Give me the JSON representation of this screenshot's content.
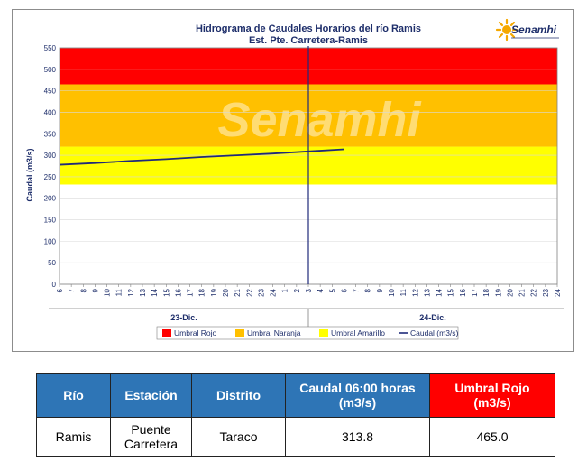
{
  "chart_data": {
    "type": "line",
    "title": "Hidrograma de Caudales Horarios del río Ramis",
    "subtitle": "Est. Pte. Carretera-Ramis",
    "ylabel": "Caudal  (m3/s)",
    "ylim": [
      0,
      550
    ],
    "yticks": [
      0,
      50,
      100,
      150,
      200,
      250,
      300,
      350,
      400,
      450,
      500,
      550
    ],
    "x_hour_ticks": [
      "6",
      "7",
      "8",
      "9",
      "10",
      "11",
      "12",
      "13",
      "14",
      "15",
      "16",
      "17",
      "18",
      "19",
      "20",
      "21",
      "22",
      "23",
      "24",
      "1",
      "2",
      "3",
      "4",
      "5",
      "6",
      "7",
      "8",
      "9",
      "10",
      "11",
      "12",
      "13",
      "14",
      "15",
      "16",
      "17",
      "18",
      "19",
      "20",
      "21",
      "22",
      "23",
      "24"
    ],
    "days": [
      {
        "label": "23-Dic.",
        "start_index": 0,
        "end_index": 21
      },
      {
        "label": "24-Dic.",
        "start_index": 21,
        "end_index": 42
      }
    ],
    "current_time_index": 21,
    "thresholds": [
      {
        "name": "Umbral Amarillo",
        "from": 232,
        "to": 320,
        "color": "#ffff00"
      },
      {
        "name": "Umbral Naranja",
        "from": 320,
        "to": 465,
        "color": "#ffc000"
      },
      {
        "name": "Umbral Rojo",
        "from": 465,
        "to": 550,
        "color": "#ff0000"
      }
    ],
    "series": [
      {
        "name": "Caudal (m3/s)",
        "color": "#1f2a7a",
        "x_index": [
          0,
          3,
          6,
          9,
          12,
          15,
          18,
          21,
          24
        ],
        "values": [
          278,
          282,
          287,
          291,
          296,
          300,
          304,
          309,
          313.8
        ]
      }
    ],
    "legend": {
      "position": "bottom",
      "items": [
        {
          "label": "Umbral Rojo",
          "color": "#ff0000",
          "kind": "box"
        },
        {
          "label": "Umbral Naranja",
          "color": "#ffc000",
          "kind": "box"
        },
        {
          "label": "Umbral Amarillo",
          "color": "#ffff00",
          "kind": "box"
        },
        {
          "label": "Caudal (m3/s)",
          "color": "#1f2a7a",
          "kind": "line"
        }
      ]
    },
    "watermark": "Senamhi",
    "logo": "Senamhi"
  },
  "table": {
    "headers": [
      {
        "line1": "Río",
        "line2": ""
      },
      {
        "line1": "Estación",
        "line2": ""
      },
      {
        "line1": "Distrito",
        "line2": ""
      },
      {
        "line1": "Caudal  06:00 horas",
        "line2": "(m3/s)"
      },
      {
        "line1": "Umbral Rojo",
        "line2": "(m3/s)"
      }
    ],
    "row": [
      "Ramis",
      "Puente Carretera",
      "Taraco",
      "313.8",
      "465.0"
    ],
    "colors": {
      "header": "#2e75b6",
      "header_red": "#ff0000"
    }
  }
}
